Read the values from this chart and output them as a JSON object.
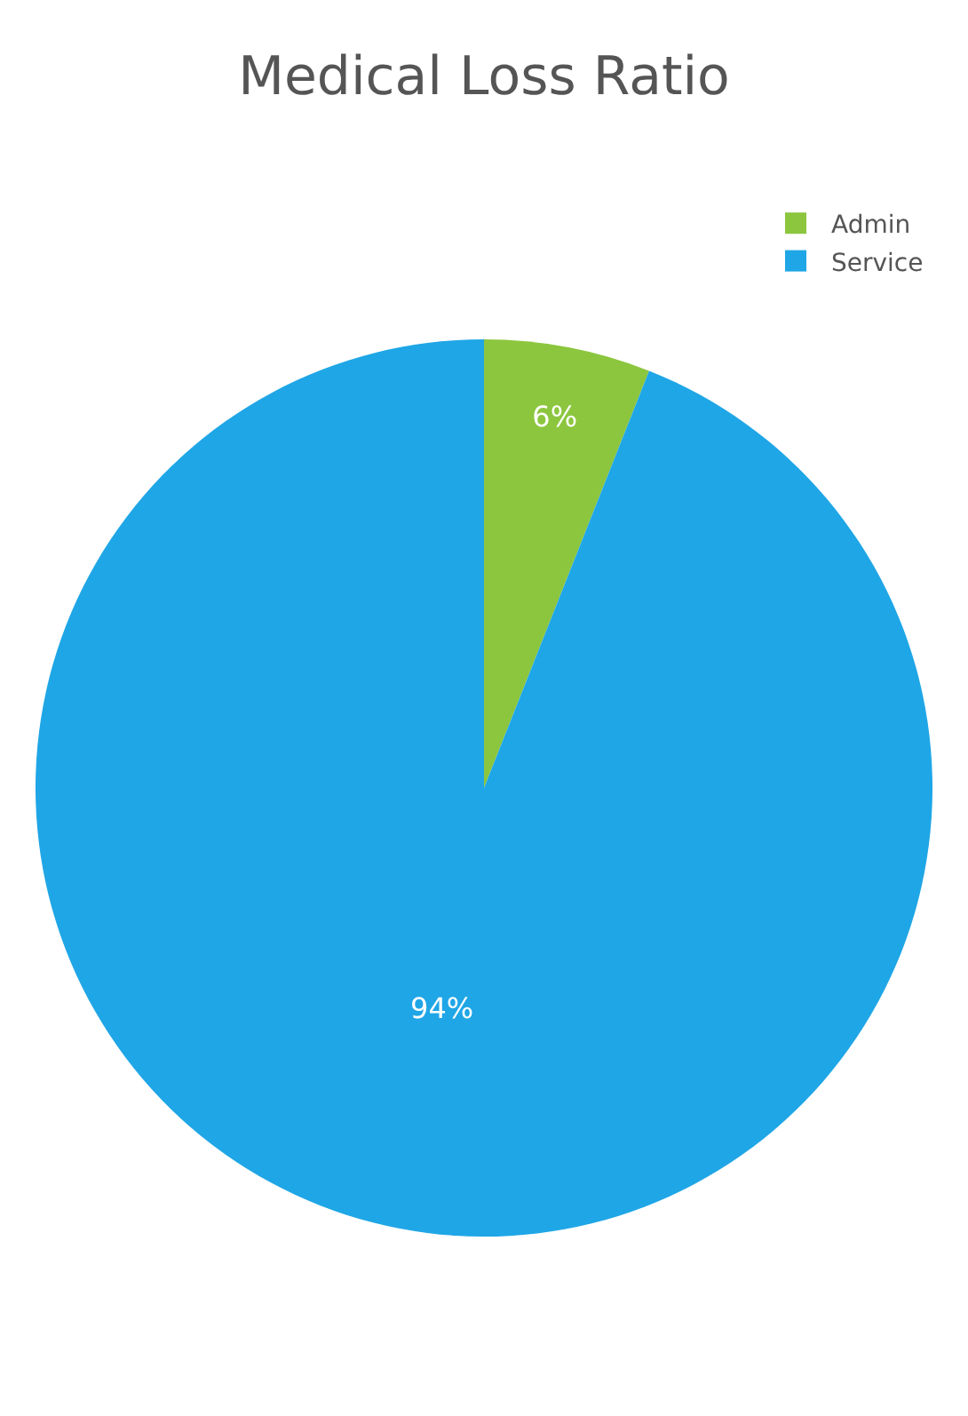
{
  "chart_data": {
    "type": "pie",
    "title": "Medical Loss Ratio",
    "categories": [
      "Admin",
      "Service"
    ],
    "values": [
      6,
      94
    ],
    "colors": [
      "#8cc63e",
      "#1fa6e6"
    ],
    "value_labels": [
      "6%",
      "94%"
    ],
    "legend": "top right"
  }
}
